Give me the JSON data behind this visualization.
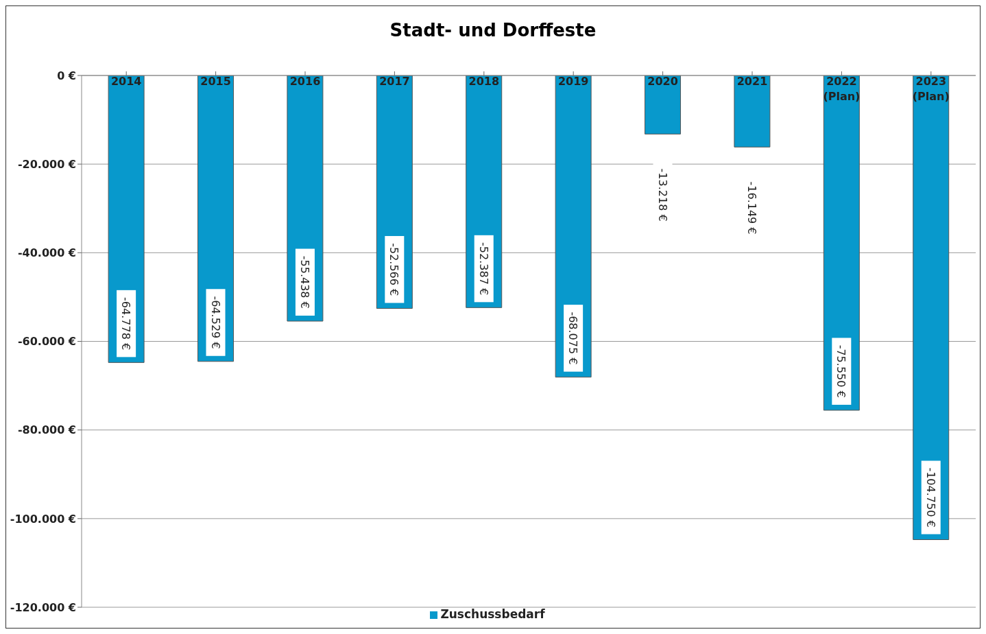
{
  "chart_data": {
    "type": "bar",
    "title": "Stadt- und Dorffeste",
    "categories": [
      "2014",
      "2015",
      "2016",
      "2017",
      "2018",
      "2019",
      "2020",
      "2021",
      "2022 (Plan)",
      "2023 (Plan)"
    ],
    "series": [
      {
        "name": "Zuschussbedarf",
        "color": "#0899cc",
        "values": [
          -64778,
          -64529,
          -55438,
          -52566,
          -52387,
          -68075,
          -13218,
          -16149,
          -75550,
          -104750
        ],
        "value_labels": [
          "-64.778 €",
          "-64.529 €",
          "-55.438 €",
          "-52.566 €",
          "-52.387 €",
          "-68.075 €",
          "-13.218 €",
          "-16.149 €",
          "-75.550 €",
          "-104.750 €"
        ]
      }
    ],
    "ylim": [
      -120000,
      0
    ],
    "yticks": [
      {
        "value": 0,
        "label": "0 €"
      },
      {
        "value": -20000,
        "label": "-20.000 €"
      },
      {
        "value": -40000,
        "label": "-40.000 €"
      },
      {
        "value": -60000,
        "label": "-60.000 €"
      },
      {
        "value": -80000,
        "label": "-80.000 €"
      },
      {
        "value": -100000,
        "label": "-100.000 €"
      },
      {
        "value": -120000,
        "label": "-120.000 €"
      }
    ],
    "grid": "y",
    "legend": "bottom"
  }
}
